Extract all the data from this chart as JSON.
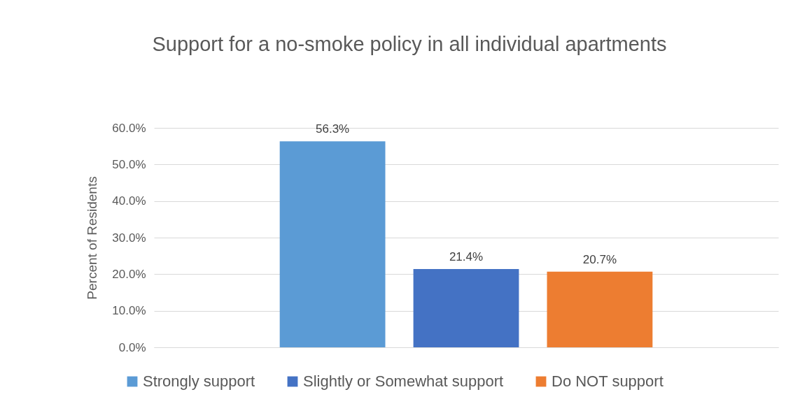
{
  "chart_data": {
    "type": "bar",
    "title": "Support for a no-smoke policy in all individual apartments",
    "ylabel": "Percent of Residents",
    "categories": [
      null
    ],
    "series": [
      {
        "name": "Strongly support",
        "color": "#5b9bd5",
        "values": [
          56.3
        ],
        "value_labels": [
          "56.3%"
        ]
      },
      {
        "name": "Slightly or Somewhat support",
        "color": "#4472c4",
        "values": [
          21.4
        ],
        "value_labels": [
          "21.4%"
        ]
      },
      {
        "name": "Do NOT support",
        "color": "#ed7d31",
        "values": [
          20.7
        ],
        "value_labels": [
          "20.7%"
        ]
      }
    ],
    "ylim": [
      0,
      60
    ],
    "yticks": [
      {
        "value": 0,
        "label": "0.0%"
      },
      {
        "value": 10,
        "label": "10.0%"
      },
      {
        "value": 20,
        "label": "20.0%"
      },
      {
        "value": 30,
        "label": "30.0%"
      },
      {
        "value": 40,
        "label": "40.0%"
      },
      {
        "value": 50,
        "label": "50.0%"
      },
      {
        "value": 60,
        "label": "60.0%"
      }
    ],
    "grid": "y",
    "legend": "bottom"
  }
}
